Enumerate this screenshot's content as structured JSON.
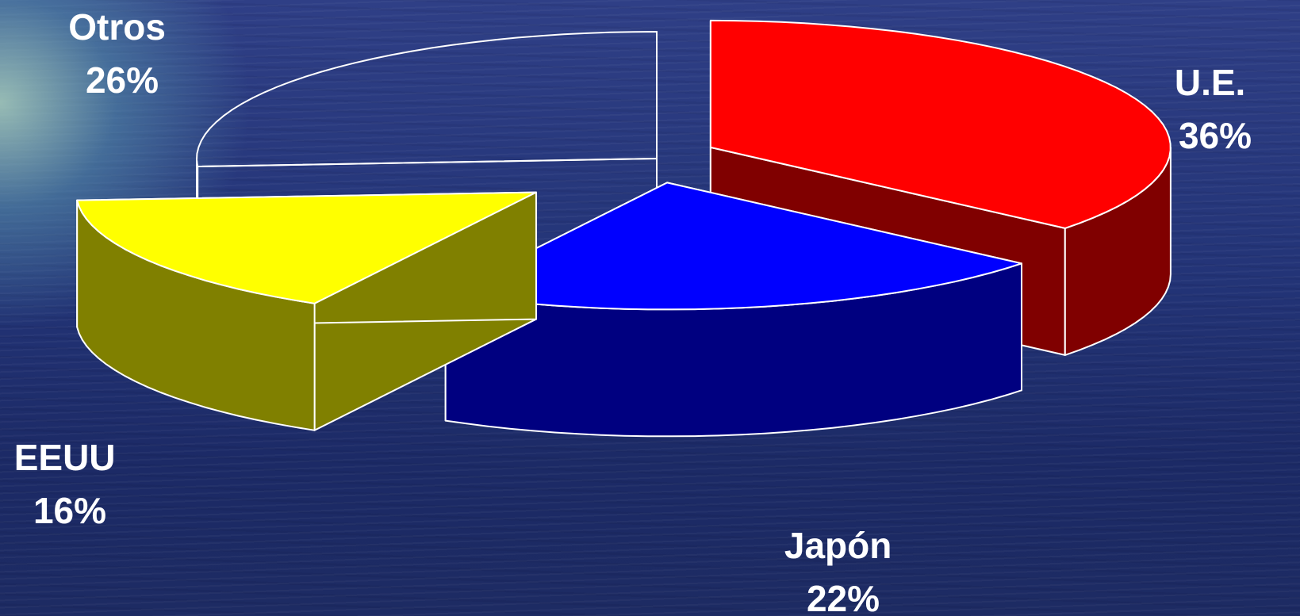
{
  "chart_data": {
    "type": "pie",
    "style": "3d-exploded",
    "categories": [
      "U.E.",
      "Japón",
      "EEUU",
      "Otros"
    ],
    "values": [
      36,
      22,
      16,
      26
    ],
    "labels": [
      {
        "name": "U.E.",
        "pct": "36%"
      },
      {
        "name": "Japón",
        "pct": "22%"
      },
      {
        "name": "EEUU",
        "pct": "16%"
      },
      {
        "name": "Otros",
        "pct": "26%"
      }
    ],
    "colors": {
      "U.E.": {
        "top": "#ff0000",
        "side": "#800000"
      },
      "Japón": {
        "top": "#0000ff",
        "side": "#000080"
      },
      "EEUU": {
        "top": "#ffff00",
        "side": "#808000"
      },
      "Otros": {
        "top": "none",
        "side": "none"
      }
    },
    "outline_color": "#ffffff",
    "legend": "none"
  }
}
